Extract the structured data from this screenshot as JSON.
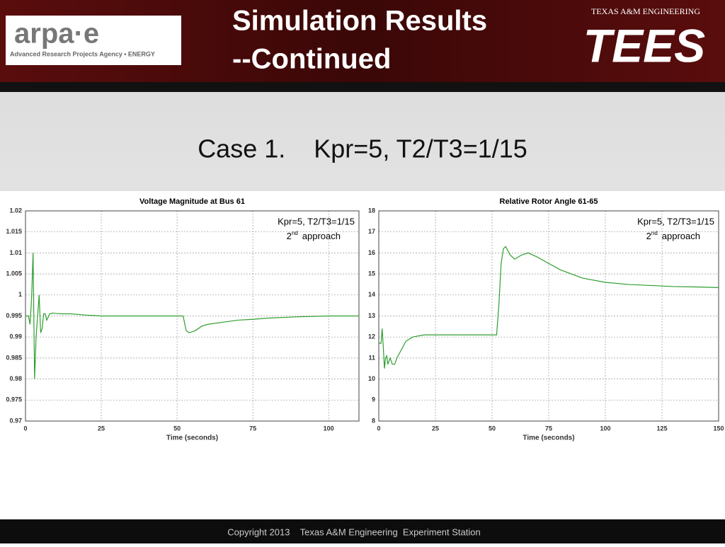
{
  "header": {
    "title_lines": [
      "Simulation Results",
      "--Continued"
    ],
    "logo_left": "arpa·e",
    "logo_left_sub": "Advanced Research Projects Agency • ENERGY",
    "logo_right_top": "TEXAS A&M ENGINEERING",
    "logo_right": "TEES"
  },
  "case": "Case 1.    Kpr=5, T2/T3=1/15",
  "footer": "Copyright 2013    Texas A&M Engineering  Experiment Station",
  "chart_data": [
    {
      "type": "line",
      "title": "Voltage Magnitude at Bus 61",
      "x_label": "Time (seconds)",
      "annotation": "Kpr=5, T2/T3=1/15",
      "annotation_ordinal": "2",
      "annotation_suffix": "nd",
      "annotation_text": "approach",
      "xlim": [
        0,
        110
      ],
      "xticks": [
        0,
        25,
        50,
        75,
        100
      ],
      "ylim": [
        0.97,
        1.02
      ],
      "yticks": [
        0.97,
        0.975,
        0.98,
        0.985,
        0.99,
        0.995,
        1,
        1.005,
        1.01,
        1.015,
        1.02
      ],
      "grid": true,
      "x": [
        0,
        1,
        1.5,
        2,
        2.5,
        3,
        3.5,
        4,
        4.5,
        5,
        5.5,
        6,
        6.5,
        7,
        8,
        9,
        10,
        12,
        15,
        20,
        25,
        30,
        40,
        50,
        52,
        53,
        54,
        56,
        58,
        60,
        65,
        70,
        75,
        80,
        90,
        100,
        110
      ],
      "series": [
        {
          "color": "#2e9e2e",
          "values": [
            0.995,
            0.995,
            0.993,
            0.999,
            1.01,
            0.98,
            0.99,
            0.995,
            1.0,
            0.991,
            0.992,
            0.9955,
            0.9955,
            0.994,
            0.9955,
            0.9957,
            0.9956,
            0.9955,
            0.9955,
            0.9952,
            0.995,
            0.995,
            0.995,
            0.995,
            0.995,
            0.9915,
            0.991,
            0.9915,
            0.9925,
            0.993,
            0.9935,
            0.994,
            0.9942,
            0.9945,
            0.9948,
            0.995,
            0.995
          ]
        }
      ]
    },
    {
      "type": "line",
      "title": "Relative Rotor Angle 61-65",
      "x_label": "Time (seconds)",
      "annotation": "Kpr=5, T2/T3=1/15",
      "annotation_ordinal": "2",
      "annotation_suffix": "nd",
      "annotation_text": "approach",
      "xlim": [
        0,
        150
      ],
      "xticks": [
        0,
        25,
        50,
        75,
        100,
        125,
        150
      ],
      "ylim": [
        8,
        18
      ],
      "yticks": [
        8,
        9,
        10,
        11,
        12,
        13,
        14,
        15,
        16,
        17,
        18
      ],
      "grid": true,
      "x": [
        0,
        1,
        1.5,
        2,
        2.5,
        3,
        3.5,
        4,
        5,
        6,
        7,
        8,
        10,
        12,
        15,
        20,
        30,
        40,
        50,
        52,
        53,
        54,
        55,
        56,
        58,
        60,
        63,
        66,
        70,
        75,
        80,
        90,
        100,
        110,
        120,
        130,
        140,
        150
      ],
      "series": [
        {
          "color": "#2e9e2e",
          "values": [
            11.7,
            11.7,
            12.4,
            11.5,
            10.5,
            11,
            11.1,
            10.7,
            11,
            10.7,
            10.7,
            11,
            11.4,
            11.8,
            12,
            12.1,
            12.1,
            12.1,
            12.1,
            12.1,
            13.5,
            15.5,
            16.2,
            16.3,
            15.9,
            15.7,
            15.9,
            16,
            15.8,
            15.5,
            15.2,
            14.8,
            14.6,
            14.5,
            14.45,
            14.4,
            14.38,
            14.35
          ]
        }
      ]
    }
  ]
}
